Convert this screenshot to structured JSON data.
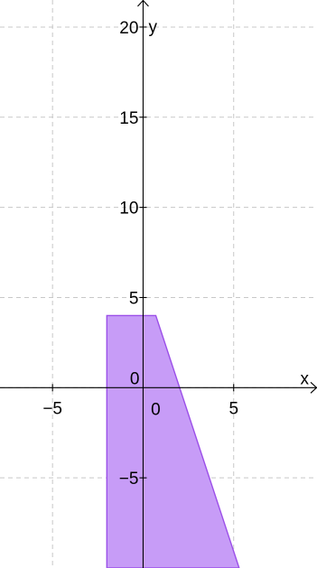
{
  "chart_data": {
    "type": "area",
    "title": "",
    "xlabel": "x",
    "ylabel": "y",
    "xlim": [
      -7.9,
      9.6
    ],
    "ylim": [
      -10,
      21.5
    ],
    "grid": true,
    "x_ticks": [
      -5,
      0,
      5
    ],
    "y_ticks": [
      -5,
      0,
      5,
      10,
      15,
      20
    ],
    "x_tick_labels": [
      "−5",
      "0",
      "5"
    ],
    "y_tick_labels": [
      "−5",
      "0",
      "5",
      "10",
      "15",
      "20"
    ],
    "origin_label": "0",
    "region": {
      "vertices": [
        [
          -2,
          4
        ],
        [
          0.7,
          4
        ],
        [
          5.3,
          -10
        ],
        [
          -2,
          -10
        ]
      ],
      "fill_color": "#c79cf7",
      "stroke_color": "#9b4fe8"
    }
  }
}
